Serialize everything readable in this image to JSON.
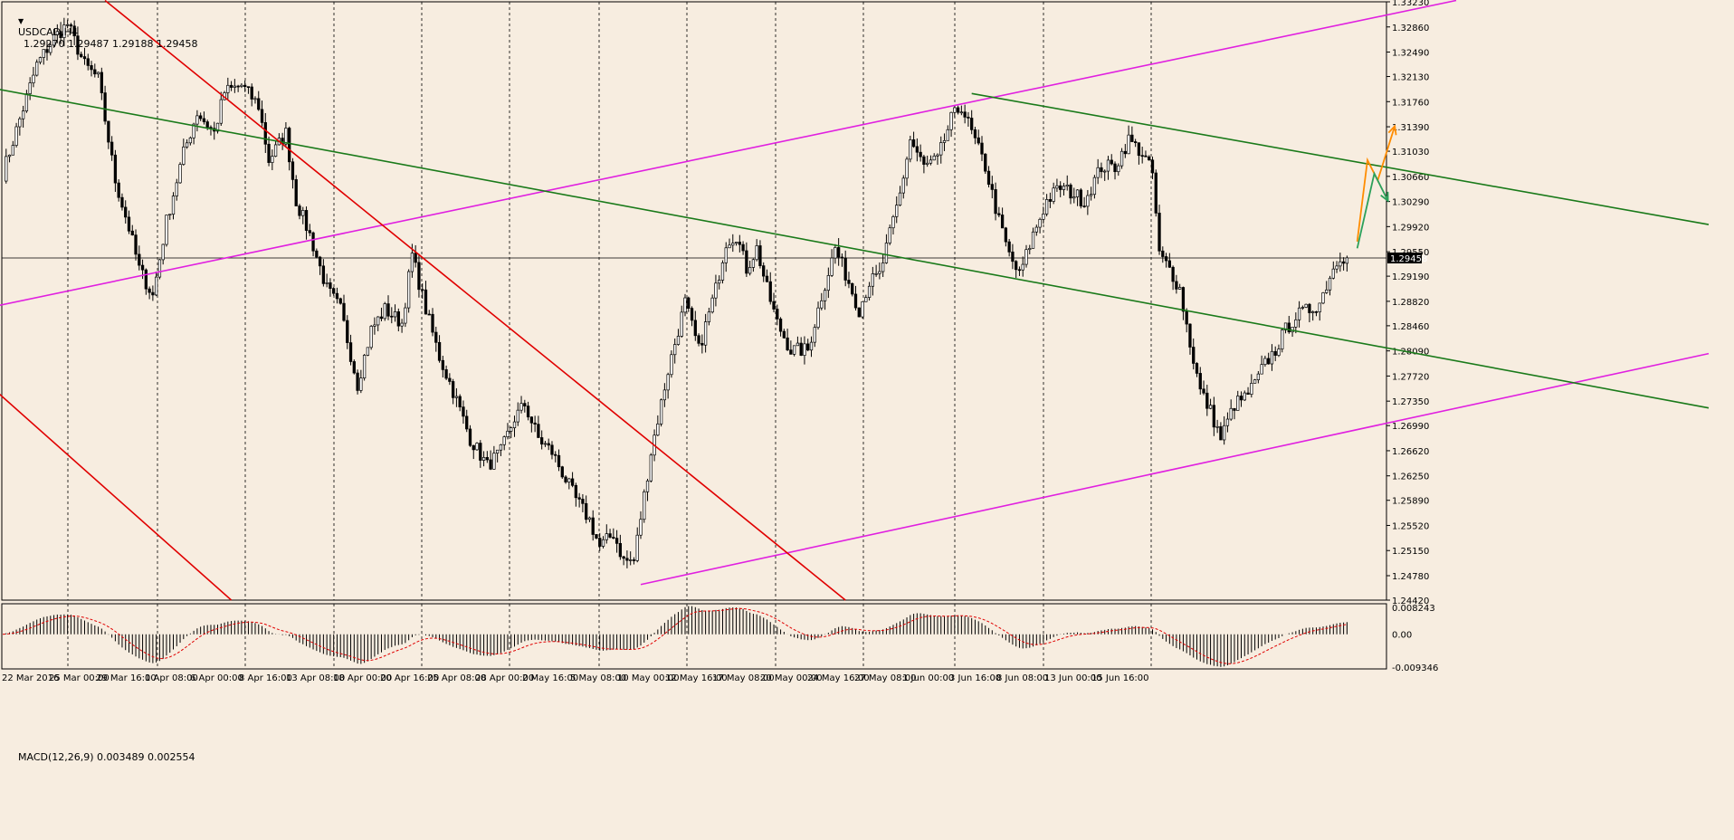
{
  "header": {
    "symbol_label": "USDCAD,H4",
    "ohlc_text": "1.29270 1.29487 1.29188 1.29458"
  },
  "macd": {
    "label": "MACD(12,26,9) 0.003489 0.002554",
    "max_label": "0.008243",
    "zero_label": "0.00",
    "min_label": "-0.009346"
  },
  "colors": {
    "background": "#f7ede0",
    "candle": "#000000",
    "channel_magenta": "#e020e0",
    "trend_green": "#1a7a1a",
    "trend_red": "#e00000",
    "arrow_orange": "#ff8c00",
    "arrow_green": "#2ca05a",
    "macd_signal": "#e00000"
  },
  "chart_data": {
    "type": "candlestick",
    "instrument": "USDCAD",
    "timeframe": "H4",
    "last_price": 1.29458,
    "price_axis_labels": [
      "1.33230",
      "1.32860",
      "1.32490",
      "1.32130",
      "1.31760",
      "1.31390",
      "1.31030",
      "1.30660",
      "1.30290",
      "1.29920",
      "1.29550",
      "1.29190",
      "1.28820",
      "1.28460",
      "1.28090",
      "1.27720",
      "1.27350",
      "1.26990",
      "1.26620",
      "1.26250",
      "1.25890",
      "1.25520",
      "1.25150",
      "1.24780",
      "1.24420"
    ],
    "ylim": [
      1.2442,
      1.3323
    ],
    "time_axis_labels": [
      "22 Mar 2016",
      "25 Mar 00:00",
      "29 Mar 16:00",
      "1 Apr 08:00",
      "6 Apr 00:00",
      "8 Apr 16:00",
      "13 Apr 08:00",
      "18 Apr 00:00",
      "20 Apr 16:00",
      "25 Apr 08:00",
      "28 Apr 00:00",
      "2 May 16:00",
      "5 May 08:00",
      "10 May 00:00",
      "12 May 16:00",
      "17 May 08:00",
      "20 May 00:00",
      "24 May 16:00",
      "27 May 08:00",
      "1 Jun 00:00",
      "3 Jun 16:00",
      "8 Jun 08:00",
      "13 Jun 00:00",
      "15 Jun 16:00"
    ],
    "grid": "vertical dotted",
    "swing_path": [
      [
        0,
        1.307
      ],
      [
        10,
        1.323
      ],
      [
        15,
        1.327
      ],
      [
        19,
        1.329
      ],
      [
        24,
        1.323
      ],
      [
        28,
        1.321
      ],
      [
        33,
        1.306
      ],
      [
        37,
        1.299
      ],
      [
        40,
        1.293
      ],
      [
        44,
        1.289
      ],
      [
        48,
        1.3
      ],
      [
        53,
        1.31
      ],
      [
        57,
        1.316
      ],
      [
        62,
        1.313
      ],
      [
        65,
        1.319
      ],
      [
        70,
        1.32
      ],
      [
        75,
        1.317
      ],
      [
        78,
        1.309
      ],
      [
        83,
        1.313
      ],
      [
        86,
        1.303
      ],
      [
        90,
        1.298
      ],
      [
        95,
        1.29
      ],
      [
        99,
        1.287
      ],
      [
        104,
        1.276
      ],
      [
        108,
        1.284
      ],
      [
        112,
        1.287
      ],
      [
        117,
        1.285
      ],
      [
        120,
        1.295
      ],
      [
        124,
        1.287
      ],
      [
        128,
        1.28
      ],
      [
        132,
        1.275
      ],
      [
        137,
        1.268
      ],
      [
        142,
        1.264
      ],
      [
        146,
        1.266
      ],
      [
        150,
        1.271
      ],
      [
        153,
        1.273
      ],
      [
        157,
        1.268
      ],
      [
        161,
        1.266
      ],
      [
        165,
        1.262
      ],
      [
        168,
        1.259
      ],
      [
        172,
        1.256
      ],
      [
        175,
        1.252
      ],
      [
        179,
        1.254
      ],
      [
        182,
        1.25
      ],
      [
        185,
        1.25
      ],
      [
        190,
        1.266
      ],
      [
        195,
        1.278
      ],
      [
        200,
        1.288
      ],
      [
        204,
        1.281
      ],
      [
        209,
        1.29
      ],
      [
        212,
        1.297
      ],
      [
        215,
        1.298
      ],
      [
        218,
        1.293
      ],
      [
        221,
        1.296
      ],
      [
        224,
        1.29
      ],
      [
        227,
        1.285
      ],
      [
        231,
        1.281
      ],
      [
        236,
        1.281
      ],
      [
        240,
        1.289
      ],
      [
        244,
        1.296
      ],
      [
        248,
        1.291
      ],
      [
        251,
        1.287
      ],
      [
        254,
        1.291
      ],
      [
        257,
        1.292
      ],
      [
        260,
        1.298
      ],
      [
        263,
        1.304
      ],
      [
        266,
        1.312
      ],
      [
        270,
        1.308
      ],
      [
        274,
        1.309
      ],
      [
        278,
        1.315
      ],
      [
        281,
        1.317
      ],
      [
        284,
        1.313
      ],
      [
        288,
        1.308
      ],
      [
        292,
        1.3
      ],
      [
        295,
        1.295
      ],
      [
        298,
        1.292
      ],
      [
        302,
        1.298
      ],
      [
        306,
        1.303
      ],
      [
        310,
        1.305
      ],
      [
        314,
        1.304
      ],
      [
        317,
        1.303
      ],
      [
        322,
        1.308
      ],
      [
        326,
        1.308
      ],
      [
        330,
        1.312
      ],
      [
        334,
        1.31
      ],
      [
        337,
        1.307
      ],
      [
        339,
        1.295
      ],
      [
        342,
        1.293
      ],
      [
        345,
        1.29
      ],
      [
        348,
        1.282
      ],
      [
        351,
        1.275
      ],
      [
        354,
        1.272
      ],
      [
        357,
        1.268
      ],
      [
        361,
        1.273
      ],
      [
        364,
        1.274
      ],
      [
        367,
        1.276
      ],
      [
        370,
        1.279
      ],
      [
        373,
        1.281
      ],
      [
        376,
        1.284
      ],
      [
        379,
        1.286
      ],
      [
        383,
        1.287
      ],
      [
        386,
        1.288
      ],
      [
        389,
        1.292
      ],
      [
        392,
        1.295
      ],
      [
        394,
        1.2946
      ]
    ],
    "num_bars": 395,
    "macd_series": {
      "name": "MACD(12,26,9)",
      "value": 0.003489,
      "signal": 0.002554,
      "ylim": [
        -0.009346,
        0.008243
      ]
    },
    "trendlines": [
      {
        "color": "channel_magenta",
        "from": [
          -2,
          1.2875
        ],
        "to": [
          426,
          1.3325
        ]
      },
      {
        "color": "channel_magenta",
        "from": [
          187,
          1.2465
        ],
        "to": [
          500,
          1.2805
        ]
      },
      {
        "color": "trend_green",
        "from": [
          -2,
          1.3195
        ],
        "to": [
          500,
          1.2725
        ]
      },
      {
        "color": "trend_green",
        "from": [
          284,
          1.3188
        ],
        "to": [
          500,
          1.2995
        ]
      },
      {
        "color": "trend_red",
        "from": [
          30,
          1.3325
        ],
        "to": [
          247,
          1.2442
        ]
      },
      {
        "color": "trend_red",
        "from": [
          -2,
          1.275
        ],
        "to": [
          67,
          1.2442
        ]
      }
    ],
    "forecast_arrows": [
      {
        "color": "arrow_orange",
        "path": [
          [
            397,
            1.297
          ],
          [
            400,
            1.309
          ],
          [
            403,
            1.306
          ],
          [
            408,
            1.314
          ]
        ]
      },
      {
        "color": "arrow_green",
        "path": [
          [
            397,
            1.296
          ],
          [
            402,
            1.307
          ],
          [
            406,
            1.303
          ]
        ]
      }
    ]
  }
}
